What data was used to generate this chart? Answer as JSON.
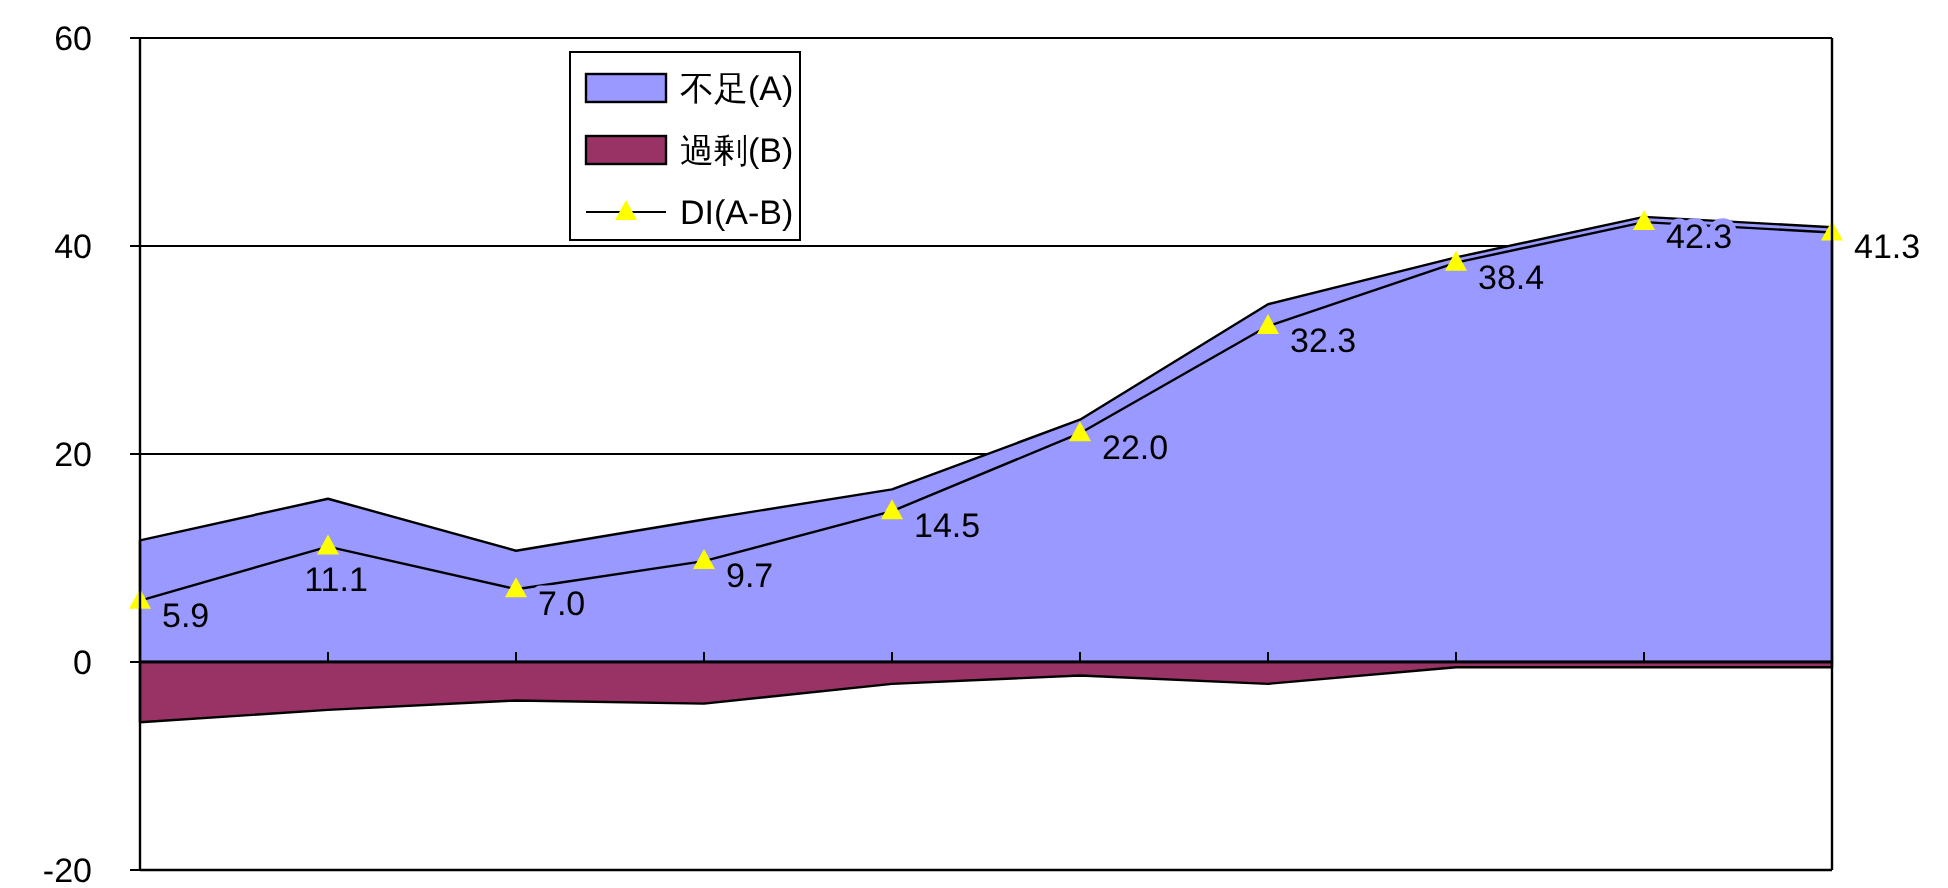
{
  "chart_data": {
    "type": "area",
    "categories": [
      null,
      null,
      null,
      null,
      null,
      null,
      null,
      null,
      null,
      null
    ],
    "series": [
      {
        "name": "不足(A)",
        "type": "area",
        "color": "#9999ff",
        "values": [
          11.7,
          15.7,
          10.7,
          13.7,
          16.6,
          23.3,
          34.4,
          38.9,
          42.8,
          41.8
        ]
      },
      {
        "name": "過剰(B)",
        "type": "area",
        "color": "#993366",
        "values": [
          -5.8,
          -4.6,
          -3.7,
          -4.0,
          -2.1,
          -1.3,
          -2.1,
          -0.5,
          -0.5,
          -0.5
        ]
      },
      {
        "name": "DI(A-B)",
        "type": "line",
        "color": "#000000",
        "marker": "triangle",
        "values": [
          5.9,
          11.1,
          7.0,
          9.7,
          14.5,
          22.0,
          32.3,
          38.4,
          42.3,
          41.3
        ],
        "value_labels": [
          "5.9",
          "11.1",
          "7.0",
          "9.7",
          "14.5",
          "22.0",
          "32.3",
          "38.4",
          "42.3",
          "41.3"
        ]
      }
    ],
    "ylim": [
      -20,
      60
    ],
    "yticks": [
      -20,
      0,
      20,
      40,
      60
    ],
    "grid": "y",
    "legend": "top left"
  }
}
